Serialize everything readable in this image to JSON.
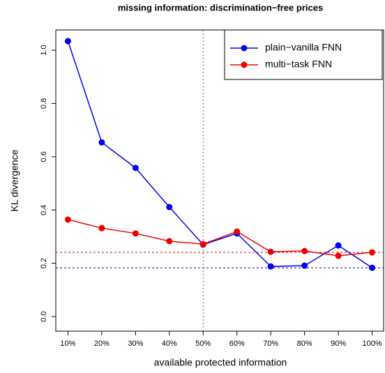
{
  "chart_data": {
    "type": "line",
    "title": "missing information: discrimination−free prices",
    "xlabel": "available protected information",
    "ylabel": "KL divergence",
    "x": [
      10,
      20,
      30,
      40,
      50,
      60,
      70,
      80,
      90,
      100
    ],
    "series": [
      {
        "name": "plain−vanilla FNN",
        "color": "#0000ee",
        "values": [
          1.034,
          0.654,
          0.558,
          0.411,
          0.27,
          0.312,
          0.188,
          0.191,
          0.267,
          0.183
        ]
      },
      {
        "name": "multi−task FNN",
        "color": "#ee0000",
        "values": [
          0.364,
          0.332,
          0.312,
          0.283,
          0.272,
          0.319,
          0.243,
          0.246,
          0.228,
          0.241
        ]
      }
    ],
    "hlines": [
      {
        "value": 0.241,
        "color": "#ee0000"
      },
      {
        "value": 0.183,
        "color": "#0000ee"
      }
    ],
    "vline": 50,
    "xlim": [
      6.4,
      103.6
    ],
    "ylim": [
      -0.055,
      1.076
    ],
    "xticks": [
      {
        "value": 10,
        "label": "10%"
      },
      {
        "value": 20,
        "label": "20%"
      },
      {
        "value": 30,
        "label": "30%"
      },
      {
        "value": 40,
        "label": "40%"
      },
      {
        "value": 50,
        "label": "50%"
      },
      {
        "value": 60,
        "label": "60%"
      },
      {
        "value": 70,
        "label": "70%"
      },
      {
        "value": 80,
        "label": "80%"
      },
      {
        "value": 90,
        "label": "90%"
      },
      {
        "value": 100,
        "label": "100%"
      }
    ],
    "yticks": [
      {
        "value": 0,
        "label": "0.0"
      },
      {
        "value": 0.2,
        "label": "0.2"
      },
      {
        "value": 0.4,
        "label": "0.4"
      },
      {
        "value": 0.6,
        "label": "0.6"
      },
      {
        "value": 0.8,
        "label": "0.8"
      },
      {
        "value": 1,
        "label": "1.0"
      }
    ],
    "legend": "top-right"
  }
}
